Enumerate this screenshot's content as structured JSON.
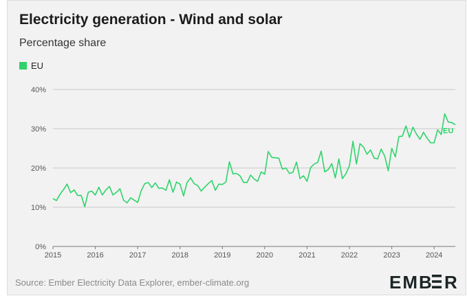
{
  "title": "Electricity generation - Wind and solar",
  "subtitle": "Percentage share",
  "source": "Source: Ember Electricity Data Explorer, ember-climate.org",
  "logo_text": "EMBER",
  "colors": {
    "series": "#2fd36a",
    "grid": "#c8c8c8",
    "axis": "#555555",
    "background": "#f2f2f2"
  },
  "chart_data": {
    "type": "line",
    "title": "Electricity generation - Wind and solar",
    "subtitle": "Percentage share",
    "xlabel": "",
    "ylabel": "",
    "x_ticks": [
      "2015",
      "2016",
      "2017",
      "2018",
      "2019",
      "2020",
      "2021",
      "2022",
      "2023",
      "2024"
    ],
    "y_ticks": [
      "0%",
      "10%",
      "20%",
      "30%",
      "40%"
    ],
    "ylim": [
      0,
      40
    ],
    "xlim": [
      2015.0,
      2024.5
    ],
    "legend": [
      "EU"
    ],
    "end_label": "EU",
    "series": [
      {
        "name": "EU",
        "start": "2015-01",
        "values": [
          12.2,
          11.7,
          13.3,
          14.5,
          15.9,
          13.7,
          14.4,
          13.0,
          13.0,
          10.1,
          13.8,
          14.1,
          13.1,
          15.1,
          13.1,
          14.4,
          15.3,
          13.1,
          13.8,
          14.7,
          11.8,
          11.1,
          12.4,
          11.8,
          11.2,
          14.2,
          16.0,
          16.3,
          15.0,
          16.2,
          14.8,
          14.9,
          14.3,
          17.0,
          13.8,
          16.4,
          15.9,
          12.9,
          16.3,
          17.5,
          16.0,
          15.5,
          14.1,
          15.1,
          16.0,
          16.8,
          14.3,
          15.9,
          15.8,
          16.4,
          21.6,
          18.5,
          18.6,
          18.0,
          16.3,
          16.3,
          18.2,
          17.2,
          16.6,
          19.0,
          18.4,
          24.2,
          22.7,
          22.6,
          22.5,
          19.7,
          20.0,
          18.6,
          18.9,
          21.5,
          17.3,
          18.0,
          16.6,
          20.1,
          21.0,
          21.4,
          24.3,
          19.0,
          19.6,
          21.1,
          17.5,
          22.3,
          17.3,
          18.5,
          20.6,
          26.8,
          21.0,
          26.2,
          25.3,
          23.5,
          24.6,
          22.5,
          22.3,
          24.8,
          23.0,
          19.3,
          25.0,
          22.8,
          28.0,
          28.1,
          30.7,
          27.8,
          30.4,
          28.6,
          27.3,
          29.1,
          27.6,
          26.4,
          26.4,
          29.7,
          28.5,
          33.8,
          31.7,
          31.6,
          31.0
        ]
      }
    ]
  }
}
